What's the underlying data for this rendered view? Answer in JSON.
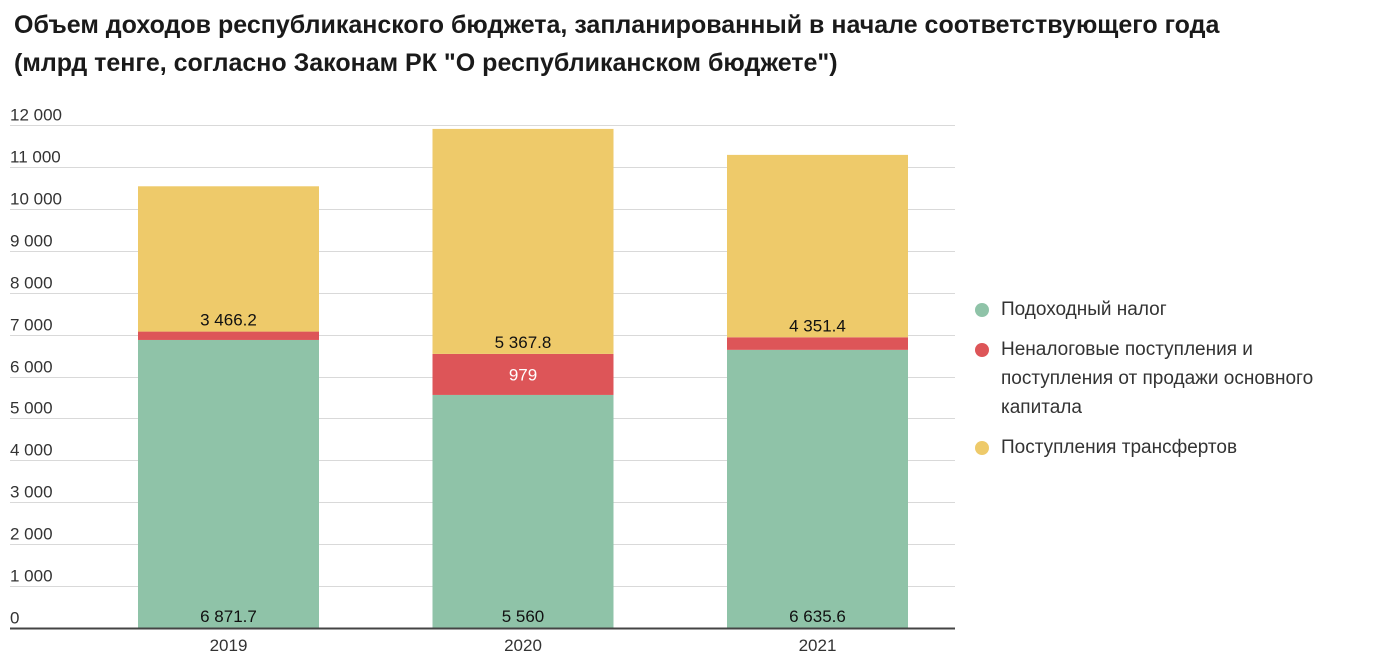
{
  "header": {
    "title_line1": "Объем доходов республиканского бюджета, запланированный в начале соответствующего года",
    "title_line2": "(млрд тенге, согласно Законам РК \"О республиканском бюджете\")"
  },
  "chart_data": {
    "type": "bar",
    "stacked": true,
    "title": "Объем доходов республиканского бюджета, запланированный в начале соответствующего года (млрд тенге, согласно Законам РК \"О республиканском бюджете\")",
    "categories": [
      "2019",
      "2020",
      "2021"
    ],
    "series": [
      {
        "name": "Подоходный налог",
        "color": "#8fc3a8",
        "values": [
          6871.7,
          5560,
          6635.6
        ],
        "labels": [
          "6 871.7",
          "5 560",
          "6 635.6"
        ]
      },
      {
        "name": "Неналоговые поступления и поступления от продажи основного капитала",
        "color": "#dd5558",
        "values": [
          200,
          979,
          300
        ],
        "labels": [
          "",
          "979",
          ""
        ]
      },
      {
        "name": "Поступления трансфертов",
        "color": "#eeca6a",
        "values": [
          3466.2,
          5367.8,
          4351.4
        ],
        "labels": [
          "3 466.2",
          "5 367.8",
          "4 351.4"
        ]
      }
    ],
    "ylim": [
      0,
      12000
    ],
    "yticks": [
      0,
      1000,
      2000,
      3000,
      4000,
      5000,
      6000,
      7000,
      8000,
      9000,
      10000,
      11000,
      12000
    ],
    "ytick_labels": [
      "0",
      "1 000",
      "2 000",
      "3 000",
      "4 000",
      "5 000",
      "6 000",
      "7 000",
      "8 000",
      "9 000",
      "10 000",
      "11 000",
      "12 000"
    ],
    "grid": true,
    "legend_position": "right",
    "xlabel": "",
    "ylabel": ""
  }
}
